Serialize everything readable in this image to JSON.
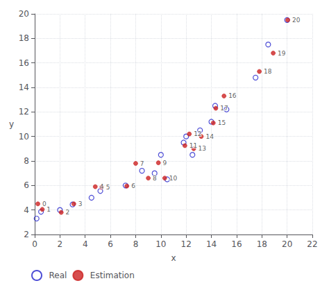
{
  "chart_data": {
    "type": "scatter",
    "xlabel": "x",
    "ylabel": "y",
    "series": [
      {
        "name": "Real",
        "color": "#2222cc",
        "marker": "open circle",
        "x": [
          0.15,
          0.5,
          2.0,
          3.0,
          4.5,
          5.2,
          7.2,
          8.5,
          9.5,
          10.0,
          10.5,
          11.8,
          12.0,
          12.5,
          13.1,
          14.0,
          15.2,
          14.3,
          17.5,
          18.5,
          20.0
        ],
        "y": [
          3.3,
          3.85,
          4.0,
          4.45,
          5.0,
          5.55,
          6.0,
          7.2,
          7.0,
          8.5,
          6.5,
          9.5,
          10.0,
          8.5,
          10.5,
          11.2,
          12.2,
          12.5,
          14.8,
          17.5,
          19.5
        ]
      },
      {
        "name": "Estimation",
        "color": "#cc2222",
        "marker": "circle",
        "x": [
          0.25,
          0.6,
          2.1,
          3.1,
          4.8,
          5.3,
          7.3,
          8.0,
          9.0,
          9.8,
          10.3,
          11.9,
          12.25,
          12.6,
          13.2,
          14.15,
          15.0,
          14.35,
          17.8,
          18.9,
          20.05
        ],
        "y": [
          4.5,
          4.05,
          3.8,
          4.5,
          5.9,
          5.85,
          5.95,
          7.8,
          6.6,
          7.85,
          6.6,
          9.25,
          10.2,
          9.0,
          10.0,
          11.1,
          13.3,
          12.3,
          15.3,
          16.8,
          19.5
        ],
        "labels": [
          "0",
          "1",
          "2",
          "3",
          "4",
          "5",
          "6",
          "7",
          "8",
          "9",
          "10",
          "11",
          "12",
          "13",
          "14",
          "15",
          "16",
          "17",
          "18",
          "19",
          "20"
        ]
      }
    ],
    "xlim": [
      0,
      22
    ],
    "xticks": [
      0,
      2,
      4,
      6,
      8,
      10,
      12,
      14,
      16,
      18,
      20,
      22
    ],
    "ylim": [
      2,
      20
    ],
    "yticks": [
      2,
      4,
      6,
      8,
      10,
      12,
      14,
      16,
      18,
      20
    ],
    "grid": true,
    "legend": "bottom left"
  }
}
